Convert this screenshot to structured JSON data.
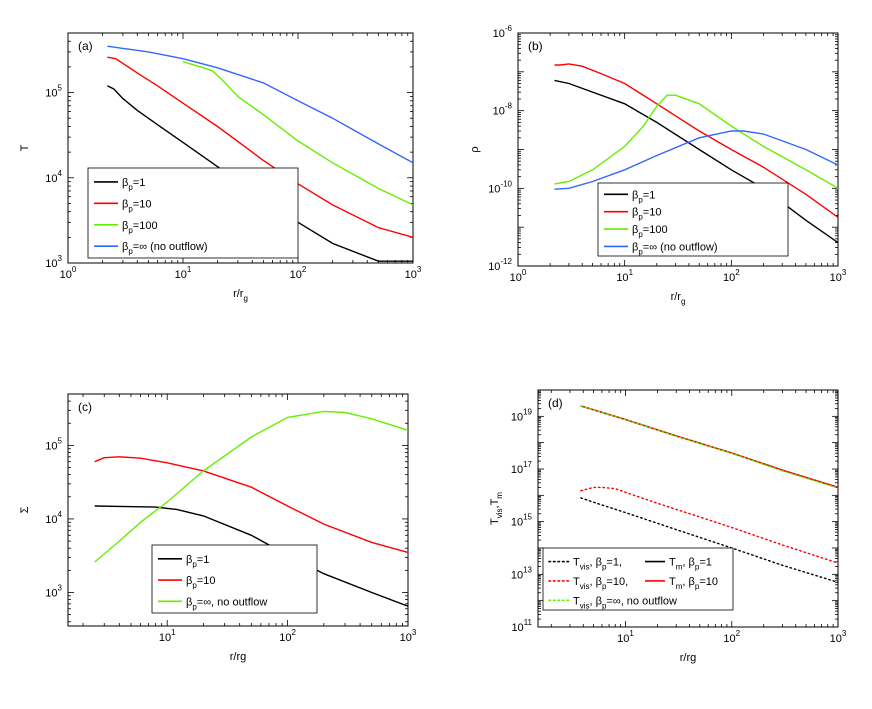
{
  "figure_title": "",
  "chart_data": [
    {
      "id": "a",
      "type": "line",
      "panel_label": "(a)",
      "xscale": "log",
      "yscale": "log",
      "xlim": [
        1,
        1000
      ],
      "ylim": [
        1000,
        500000
      ],
      "xlabel": {
        "main": "r/r",
        "sub": "g"
      },
      "ylabel": {
        "main": "T",
        "sub": ""
      },
      "x_ticks": [
        {
          "base": "10",
          "exp": "0"
        },
        {
          "base": "10",
          "exp": "1"
        },
        {
          "base": "10",
          "exp": "2"
        },
        {
          "base": "10",
          "exp": "3"
        }
      ],
      "y_ticks": [
        {
          "base": "10",
          "exp": "3"
        },
        {
          "base": "10",
          "exp": "4"
        },
        {
          "base": "10",
          "exp": "5"
        }
      ],
      "legend_position": "lower-left",
      "series": [
        {
          "name": "β_p=1",
          "legend": {
            "pre": "β",
            "sub": "p",
            "post": "=1"
          },
          "color": "#000000",
          "dash": "solid",
          "points": [
            [
              2.2,
              120000
            ],
            [
              2.5,
              110000
            ],
            [
              3,
              85000
            ],
            [
              4,
              62000
            ],
            [
              6,
              42000
            ],
            [
              10,
              26000
            ],
            [
              20,
              13500
            ],
            [
              50,
              5500
            ],
            [
              100,
              3000
            ],
            [
              200,
              1700
            ],
            [
              500,
              1050
            ],
            [
              1000,
              1050
            ]
          ]
        },
        {
          "name": "β_p=10",
          "legend": {
            "pre": "β",
            "sub": "p",
            "post": "=10"
          },
          "color": "#ff0000",
          "dash": "solid",
          "points": [
            [
              2.2,
              260000
            ],
            [
              2.6,
              250000
            ],
            [
              3,
              220000
            ],
            [
              4,
              170000
            ],
            [
              6,
              120000
            ],
            [
              10,
              75000
            ],
            [
              20,
              40000
            ],
            [
              50,
              16000
            ],
            [
              100,
              8500
            ],
            [
              200,
              4800
            ],
            [
              500,
              2600
            ],
            [
              1000,
              2000
            ]
          ]
        },
        {
          "name": "β_p=100",
          "legend": {
            "pre": "β",
            "sub": "p",
            "post": "=100"
          },
          "color": "#66ee00",
          "dash": "solid",
          "points": [
            [
              10,
              230000
            ],
            [
              15,
              195000
            ],
            [
              18,
              180000
            ],
            [
              22,
              140000
            ],
            [
              30,
              90000
            ],
            [
              50,
              55000
            ],
            [
              100,
              27000
            ],
            [
              200,
              15000
            ],
            [
              500,
              7500
            ],
            [
              1000,
              4800
            ]
          ]
        },
        {
          "name": "β_p=∞ (no outflow)",
          "legend": {
            "pre": "β",
            "sub": "p",
            "post": "=∞ (no outflow)"
          },
          "color": "#3366ff",
          "dash": "solid",
          "points": [
            [
              2.2,
              350000
            ],
            [
              3,
              330000
            ],
            [
              5,
              300000
            ],
            [
              10,
              250000
            ],
            [
              20,
              195000
            ],
            [
              50,
              130000
            ],
            [
              100,
              80000
            ],
            [
              200,
              50000
            ],
            [
              500,
              25000
            ],
            [
              1000,
              15000
            ]
          ]
        }
      ]
    },
    {
      "id": "b",
      "type": "line",
      "panel_label": "(b)",
      "xscale": "log",
      "yscale": "log",
      "xlim": [
        1,
        1000
      ],
      "ylim": [
        1e-12,
        1e-06
      ],
      "xlabel": {
        "main": "r/r",
        "sub": "g"
      },
      "ylabel": {
        "main": "ρ",
        "sub": ""
      },
      "x_ticks": [
        {
          "base": "10",
          "exp": "0"
        },
        {
          "base": "10",
          "exp": "1"
        },
        {
          "base": "10",
          "exp": "2"
        },
        {
          "base": "10",
          "exp": "3"
        }
      ],
      "y_ticks": [
        {
          "base": "10",
          "exp": "-12"
        },
        {
          "base": "10",
          "exp": "-10"
        },
        {
          "base": "10",
          "exp": "-8"
        },
        {
          "base": "10",
          "exp": "-6"
        }
      ],
      "legend_position": "lower-left",
      "series": [
        {
          "name": "β_p=1",
          "legend": {
            "pre": "β",
            "sub": "p",
            "post": "=1"
          },
          "color": "#000000",
          "dash": "solid",
          "points": [
            [
              2.2,
              6e-08
            ],
            [
              3,
              5e-08
            ],
            [
              5,
              3e-08
            ],
            [
              10,
              1.5e-08
            ],
            [
              20,
              5e-09
            ],
            [
              50,
              1e-09
            ],
            [
              100,
              3e-10
            ],
            [
              200,
              1e-10
            ],
            [
              500,
              1.5e-11
            ],
            [
              1000,
              4e-12
            ]
          ]
        },
        {
          "name": "β_p=10",
          "legend": {
            "pre": "β",
            "sub": "p",
            "post": "=10"
          },
          "color": "#ff0000",
          "dash": "solid",
          "points": [
            [
              2.2,
              1.5e-07
            ],
            [
              2.5,
              1.5e-07
            ],
            [
              3,
              1.6e-07
            ],
            [
              4,
              1.4e-07
            ],
            [
              6,
              9e-08
            ],
            [
              10,
              5e-08
            ],
            [
              20,
              1.5e-08
            ],
            [
              50,
              3e-09
            ],
            [
              100,
              1e-09
            ],
            [
              200,
              3.5e-10
            ],
            [
              500,
              7e-11
            ],
            [
              1000,
              1.8e-11
            ]
          ]
        },
        {
          "name": "β_p=100",
          "legend": {
            "pre": "β",
            "sub": "p",
            "post": "=100"
          },
          "color": "#66ee00",
          "dash": "solid",
          "points": [
            [
              2.2,
              1.3e-10
            ],
            [
              3,
              1.5e-10
            ],
            [
              5,
              3e-10
            ],
            [
              10,
              1.2e-09
            ],
            [
              15,
              4e-09
            ],
            [
              20,
              1.3e-08
            ],
            [
              25,
              2.5e-08
            ],
            [
              30,
              2.5e-08
            ],
            [
              50,
              1.5e-08
            ],
            [
              100,
              4e-09
            ],
            [
              200,
              1.2e-09
            ],
            [
              500,
              3e-10
            ],
            [
              1000,
              1e-10
            ]
          ]
        },
        {
          "name": "β_p=∞ (no outflow)",
          "legend": {
            "pre": "β",
            "sub": "p",
            "post": "=∞ (no outflow)"
          },
          "color": "#3366ff",
          "dash": "solid",
          "points": [
            [
              2.2,
              9.5e-11
            ],
            [
              3,
              1e-10
            ],
            [
              5,
              1.5e-10
            ],
            [
              10,
              3e-10
            ],
            [
              20,
              7e-10
            ],
            [
              50,
              2e-09
            ],
            [
              100,
              3e-09
            ],
            [
              130,
              3e-09
            ],
            [
              200,
              2.5e-09
            ],
            [
              500,
              1e-09
            ],
            [
              1000,
              4e-10
            ]
          ]
        }
      ]
    },
    {
      "id": "c",
      "type": "line",
      "panel_label": "(c)",
      "xscale": "log",
      "yscale": "log",
      "xlim": [
        1.5,
        1000
      ],
      "ylim": [
        350,
        500000
      ],
      "xlabel": {
        "main": "r/rg",
        "sub": ""
      },
      "ylabel": {
        "main": "Σ",
        "sub": ""
      },
      "x_ticks": [
        {
          "base": "10",
          "exp": "1"
        },
        {
          "base": "10",
          "exp": "2"
        },
        {
          "base": "10",
          "exp": "3"
        }
      ],
      "y_ticks": [
        {
          "base": "10",
          "exp": "3"
        },
        {
          "base": "10",
          "exp": "4"
        },
        {
          "base": "10",
          "exp": "5"
        }
      ],
      "legend_position": "lower-center",
      "series": [
        {
          "name": "β_p=1",
          "legend": {
            "pre": "β",
            "sub": "p",
            "post": "=1"
          },
          "color": "#000000",
          "dash": "solid",
          "points": [
            [
              2.5,
              15000
            ],
            [
              4,
              14800
            ],
            [
              8,
              14500
            ],
            [
              12,
              13500
            ],
            [
              20,
              11000
            ],
            [
              50,
              6000
            ],
            [
              100,
              3200
            ],
            [
              200,
              1800
            ],
            [
              500,
              1000
            ],
            [
              1000,
              650
            ]
          ]
        },
        {
          "name": "β_p=10",
          "legend": {
            "pre": "β",
            "sub": "p",
            "post": "=10"
          },
          "color": "#ff0000",
          "dash": "solid",
          "points": [
            [
              2.5,
              60000
            ],
            [
              3,
              68000
            ],
            [
              4,
              70000
            ],
            [
              6,
              67000
            ],
            [
              10,
              58000
            ],
            [
              20,
              45000
            ],
            [
              50,
              27000
            ],
            [
              100,
              15000
            ],
            [
              200,
              8500
            ],
            [
              500,
              4800
            ],
            [
              1000,
              3500
            ]
          ]
        },
        {
          "name": "β_p=∞, no outflow",
          "legend": {
            "pre": "β",
            "sub": "p",
            "post": "=∞, no outflow"
          },
          "color": "#66ee00",
          "dash": "solid",
          "points": [
            [
              2.5,
              2600
            ],
            [
              4,
              5000
            ],
            [
              6,
              9000
            ],
            [
              10,
              17000
            ],
            [
              20,
              45000
            ],
            [
              50,
              130000
            ],
            [
              100,
              240000
            ],
            [
              200,
              290000
            ],
            [
              300,
              280000
            ],
            [
              500,
              230000
            ],
            [
              1000,
              160000
            ]
          ]
        }
      ]
    },
    {
      "id": "d",
      "type": "line",
      "panel_label": "(d)",
      "xscale": "log",
      "yscale": "log",
      "xlim": [
        1.5,
        1000
      ],
      "ylim": [
        100000000000.0,
        1e+20
      ],
      "xlabel": {
        "main": "r/rg",
        "sub": ""
      },
      "ylabel": {
        "main": "T",
        "sub": "vis",
        "tail": ",T",
        "sub2": "m"
      },
      "x_ticks": [
        {
          "base": "10",
          "exp": "1"
        },
        {
          "base": "10",
          "exp": "2"
        },
        {
          "base": "10",
          "exp": "3"
        }
      ],
      "y_ticks": [
        {
          "base": "10",
          "exp": "11"
        },
        {
          "base": "10",
          "exp": "13"
        },
        {
          "base": "10",
          "exp": "15"
        },
        {
          "base": "10",
          "exp": "17"
        },
        {
          "base": "10",
          "exp": "19"
        }
      ],
      "legend_position": "lower-left",
      "series": [
        {
          "name": "T_vis, β_p=1",
          "legend": "T_vis, β_p=1,",
          "color": "#000000",
          "dash": "dotted",
          "points": [
            [
              3.8,
              8000000000000000.0
            ],
            [
              5,
              5500000000000000.0
            ],
            [
              10,
              2200000000000000.0
            ],
            [
              30,
              500000000000000.0
            ],
            [
              100,
              100000000000000.0
            ],
            [
              300,
              22000000000000.0
            ],
            [
              1000,
              5000000000000.0
            ]
          ]
        },
        {
          "name": "T_m, β_p=1",
          "legend": "T_m, β_p=1",
          "color": "#000000",
          "dash": "solid",
          "points": [
            [
              3.8,
              2.5e+19
            ],
            [
              10,
              7.5e+18
            ],
            [
              30,
              1.8e+18
            ],
            [
              100,
              4e+17
            ],
            [
              300,
              9e+16
            ],
            [
              1000,
              2e+16
            ]
          ]
        },
        {
          "name": "T_vis, β_p=10",
          "legend": "T_vis, β_p=10,",
          "color": "#ff0000",
          "dash": "dotted",
          "points": [
            [
              3.8,
              1.5e+16
            ],
            [
              5,
              2e+16
            ],
            [
              6,
              2e+16
            ],
            [
              8,
              1.8e+16
            ],
            [
              10,
              1.3e+16
            ],
            [
              20,
              5000000000000000.0
            ],
            [
              50,
              1500000000000000.0
            ],
            [
              100,
              600000000000000.0
            ],
            [
              300,
              130000000000000.0
            ],
            [
              1000,
              27000000000000.0
            ]
          ]
        },
        {
          "name": "T_m, β_p=10",
          "legend": "T_m, β_p=10",
          "color": "#ff0000",
          "dash": "solid",
          "points": [
            [
              3.8,
              2.5e+19
            ],
            [
              10,
              7.5e+18
            ],
            [
              30,
              1.8e+18
            ],
            [
              100,
              4e+17
            ],
            [
              300,
              9e+16
            ],
            [
              1000,
              2e+16
            ]
          ]
        },
        {
          "name": "T_vis, β_p=∞, no outflow",
          "legend": "T_vis, β_p=∞, no outflow",
          "color": "#66ee00",
          "dash": "dotted",
          "points": [
            [
              3.8,
              2.5e+19
            ],
            [
              10,
              7.4e+18
            ],
            [
              30,
              1.75e+18
            ],
            [
              100,
              3.9e+17
            ],
            [
              300,
              8.5e+16
            ],
            [
              1000,
              1.9e+16
            ]
          ]
        }
      ]
    }
  ]
}
